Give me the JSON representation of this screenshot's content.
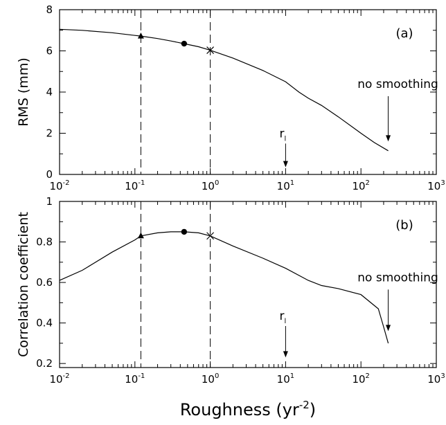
{
  "chart_data": [
    {
      "type": "line",
      "panel_label": "(a)",
      "xscale": "log",
      "xlim": [
        0.01,
        1000
      ],
      "ylim": [
        0,
        8
      ],
      "yticks": [
        0,
        2,
        4,
        6,
        8
      ],
      "ylabel": "RMS (mm)",
      "series": [
        {
          "x": [
            0.01,
            0.02,
            0.05,
            0.1,
            0.12,
            0.2,
            0.3,
            0.45,
            0.7,
            1,
            2,
            5,
            10,
            15,
            20,
            30,
            50,
            100,
            150,
            230
          ],
          "y": [
            7.05,
            7.0,
            6.88,
            6.75,
            6.72,
            6.6,
            6.48,
            6.35,
            6.2,
            6.03,
            5.65,
            5.05,
            4.5,
            4.0,
            3.7,
            3.35,
            2.8,
            2.0,
            1.55,
            1.15
          ]
        }
      ],
      "markers": [
        {
          "shape": "triangle",
          "x": 0.12,
          "y": 6.72
        },
        {
          "shape": "circle",
          "x": 0.45,
          "y": 6.35
        },
        {
          "shape": "cross",
          "x": 1,
          "y": 6.03
        }
      ],
      "vlines": [
        0.12,
        1
      ],
      "annotations": [
        {
          "text": "no smoothing",
          "x": 230,
          "arrow_from": 3.8,
          "arrow_to": 1.6
        },
        {
          "label": "r",
          "subscript": "l",
          "x": 10,
          "arrow_from": 1.5,
          "arrow_to": 0.35
        }
      ]
    },
    {
      "type": "line",
      "panel_label": "(b)",
      "xscale": "log",
      "xlim": [
        0.01,
        1000
      ],
      "ylim": [
        0.18,
        1.0
      ],
      "yticks": [
        0.2,
        0.4,
        0.6,
        0.8,
        1
      ],
      "ylabel": "Correlation coefficient",
      "xlabel": "Roughness (yr",
      "xlabel_superscript": "-2",
      "xlabel_suffix": ")",
      "series": [
        {
          "x": [
            0.01,
            0.02,
            0.05,
            0.1,
            0.12,
            0.2,
            0.3,
            0.45,
            0.7,
            1,
            2,
            5,
            10,
            20,
            30,
            50,
            100,
            170,
            200,
            230
          ],
          "y": [
            0.61,
            0.66,
            0.75,
            0.81,
            0.83,
            0.845,
            0.85,
            0.85,
            0.845,
            0.83,
            0.78,
            0.72,
            0.67,
            0.61,
            0.585,
            0.57,
            0.54,
            0.47,
            0.38,
            0.3
          ]
        }
      ],
      "markers": [
        {
          "shape": "triangle",
          "x": 0.12,
          "y": 0.83
        },
        {
          "shape": "circle",
          "x": 0.45,
          "y": 0.85
        },
        {
          "shape": "cross",
          "x": 1,
          "y": 0.83
        }
      ],
      "vlines": [
        0.12,
        1
      ],
      "annotations": [
        {
          "text": "no smoothing",
          "x": 230,
          "arrow_from": 0.565,
          "arrow_to": 0.36
        },
        {
          "label": "r",
          "subscript": "l",
          "x": 10,
          "arrow_from": 0.385,
          "arrow_to": 0.23
        }
      ]
    }
  ],
  "x_tick_base": "10",
  "x_tick_exponents": [
    "-2",
    "-1",
    "0",
    "1",
    "2",
    "3"
  ]
}
